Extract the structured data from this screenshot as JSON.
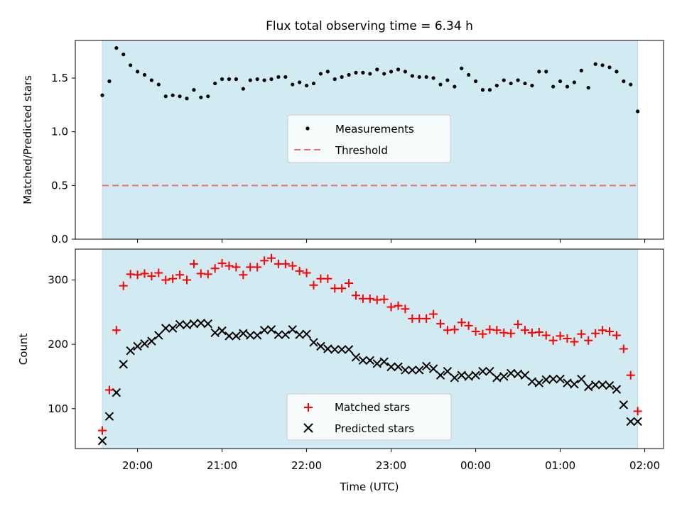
{
  "chart_data": {
    "title": "Flux total observing time = 6.34 h",
    "xlabel": "Time (UTC)",
    "x_start_label": "19:35",
    "x_tick_labels": [
      "20:00",
      "21:00",
      "22:00",
      "23:00",
      "00:00",
      "01:00",
      "02:00"
    ],
    "observing_window": [
      "19:35",
      "01:55"
    ],
    "shade_color": "#add8e6",
    "panels": [
      {
        "type": "scatter",
        "ylabel": "Matched/Predicted stars",
        "ylim": [
          0,
          1.85
        ],
        "yticks": [
          "0.0",
          "0.5",
          "1.0",
          "1.5"
        ],
        "threshold": 0.5,
        "legend": [
          "Measurements",
          "Threshold"
        ],
        "legend_position": "center",
        "series": [
          {
            "name": "Measurements",
            "marker": "dot",
            "color": "#000000",
            "x_minutes": [
              0,
              5,
              10,
              15,
              20,
              25,
              30,
              35,
              40,
              45,
              50,
              55,
              60,
              65,
              70,
              75,
              80,
              85,
              90,
              95,
              100,
              105,
              110,
              115,
              120,
              125,
              130,
              135,
              140,
              145,
              150,
              155,
              160,
              165,
              170,
              175,
              180,
              185,
              190,
              195,
              200,
              205,
              210,
              215,
              220,
              225,
              230,
              235,
              240,
              245,
              250,
              255,
              260,
              265,
              270,
              275,
              280,
              285,
              290,
              295,
              300,
              305,
              310,
              315,
              320,
              325,
              330,
              335,
              340,
              345,
              350,
              355,
              360,
              365,
              370,
              375,
              380
            ],
            "values": [
              1.34,
              1.47,
              1.78,
              1.72,
              1.62,
              1.56,
              1.53,
              1.48,
              1.44,
              1.33,
              1.34,
              1.33,
              1.31,
              1.39,
              1.32,
              1.33,
              1.45,
              1.49,
              1.49,
              1.49,
              1.4,
              1.48,
              1.49,
              1.48,
              1.49,
              1.51,
              1.51,
              1.44,
              1.46,
              1.43,
              1.45,
              1.54,
              1.56,
              1.49,
              1.51,
              1.53,
              1.55,
              1.55,
              1.54,
              1.58,
              1.54,
              1.56,
              1.58,
              1.56,
              1.52,
              1.51,
              1.51,
              1.5,
              1.44,
              1.48,
              1.42,
              1.59,
              1.53,
              1.47,
              1.39,
              1.39,
              1.43,
              1.48,
              1.45,
              1.48,
              1.45,
              1.43,
              1.56,
              1.56,
              1.42,
              1.47,
              1.42,
              1.46,
              1.57,
              1.41,
              1.63,
              1.62,
              1.6,
              1.56,
              1.47,
              1.44,
              1.19
            ]
          }
        ]
      },
      {
        "type": "scatter",
        "ylabel": "Count",
        "ylim": [
          38,
          348
        ],
        "yticks": [
          "100",
          "200",
          "300"
        ],
        "legend": [
          "Matched stars",
          "Predicted stars"
        ],
        "legend_position": "lower center",
        "series": [
          {
            "name": "Matched stars",
            "marker": "plus",
            "color": "#ff0000",
            "x_minutes": [
              0,
              5,
              10,
              15,
              20,
              25,
              30,
              35,
              40,
              45,
              50,
              55,
              60,
              65,
              70,
              75,
              80,
              85,
              90,
              95,
              100,
              105,
              110,
              115,
              120,
              125,
              130,
              135,
              140,
              145,
              150,
              155,
              160,
              165,
              170,
              175,
              180,
              185,
              190,
              195,
              200,
              205,
              210,
              215,
              220,
              225,
              230,
              235,
              240,
              245,
              250,
              255,
              260,
              265,
              270,
              275,
              280,
              285,
              290,
              295,
              300,
              305,
              310,
              315,
              320,
              325,
              330,
              335,
              340,
              345,
              350,
              355,
              360,
              365,
              370,
              375,
              380
            ],
            "values": [
              66,
              129,
              222,
              291,
              309,
              308,
              310,
              306,
              311,
              300,
              302,
              308,
              300,
              325,
              310,
              309,
              318,
              326,
              322,
              320,
              308,
              320,
              320,
              330,
              334,
              325,
              325,
              322,
              314,
              311,
              292,
              302,
              302,
              287,
              287,
              295,
              276,
              271,
              271,
              269,
              270,
              258,
              260,
              255,
              240,
              240,
              240,
              247,
              232,
              222,
              223,
              234,
              229,
              220,
              216,
              223,
              222,
              218,
              217,
              231,
              222,
              218,
              219,
              214,
              206,
              213,
              209,
              204,
              216,
              206,
              217,
              222,
              220,
              214,
              193,
              152,
              96
            ]
          },
          {
            "name": "Predicted stars",
            "marker": "x",
            "color": "#000000",
            "x_minutes": [
              0,
              5,
              10,
              15,
              20,
              25,
              30,
              35,
              40,
              45,
              50,
              55,
              60,
              65,
              70,
              75,
              80,
              85,
              90,
              95,
              100,
              105,
              110,
              115,
              120,
              125,
              130,
              135,
              140,
              145,
              150,
              155,
              160,
              165,
              170,
              175,
              180,
              185,
              190,
              195,
              200,
              205,
              210,
              215,
              220,
              225,
              230,
              235,
              240,
              245,
              250,
              255,
              260,
              265,
              270,
              275,
              280,
              285,
              290,
              295,
              300,
              305,
              310,
              315,
              320,
              325,
              330,
              335,
              340,
              345,
              350,
              355,
              360,
              365,
              370,
              375,
              380
            ],
            "values": [
              50,
              88,
              125,
              169,
              190,
              197,
              201,
              205,
              214,
              225,
              225,
              231,
              230,
              232,
              233,
              232,
              218,
              221,
              213,
              213,
              217,
              214,
              214,
              222,
              223,
              215,
              215,
              223,
              215,
              216,
              203,
              197,
              193,
              192,
              192,
              192,
              180,
              175,
              175,
              170,
              173,
              165,
              165,
              160,
              160,
              160,
              166,
              162,
              152,
              158,
              148,
              152,
              150,
              152,
              158,
              158,
              148,
              150,
              155,
              154,
              152,
              142,
              140,
              145,
              146,
              146,
              140,
              138,
              146,
              134,
              137,
              137,
              136,
              130,
              106,
              80,
              80
            ]
          }
        ]
      }
    ]
  }
}
